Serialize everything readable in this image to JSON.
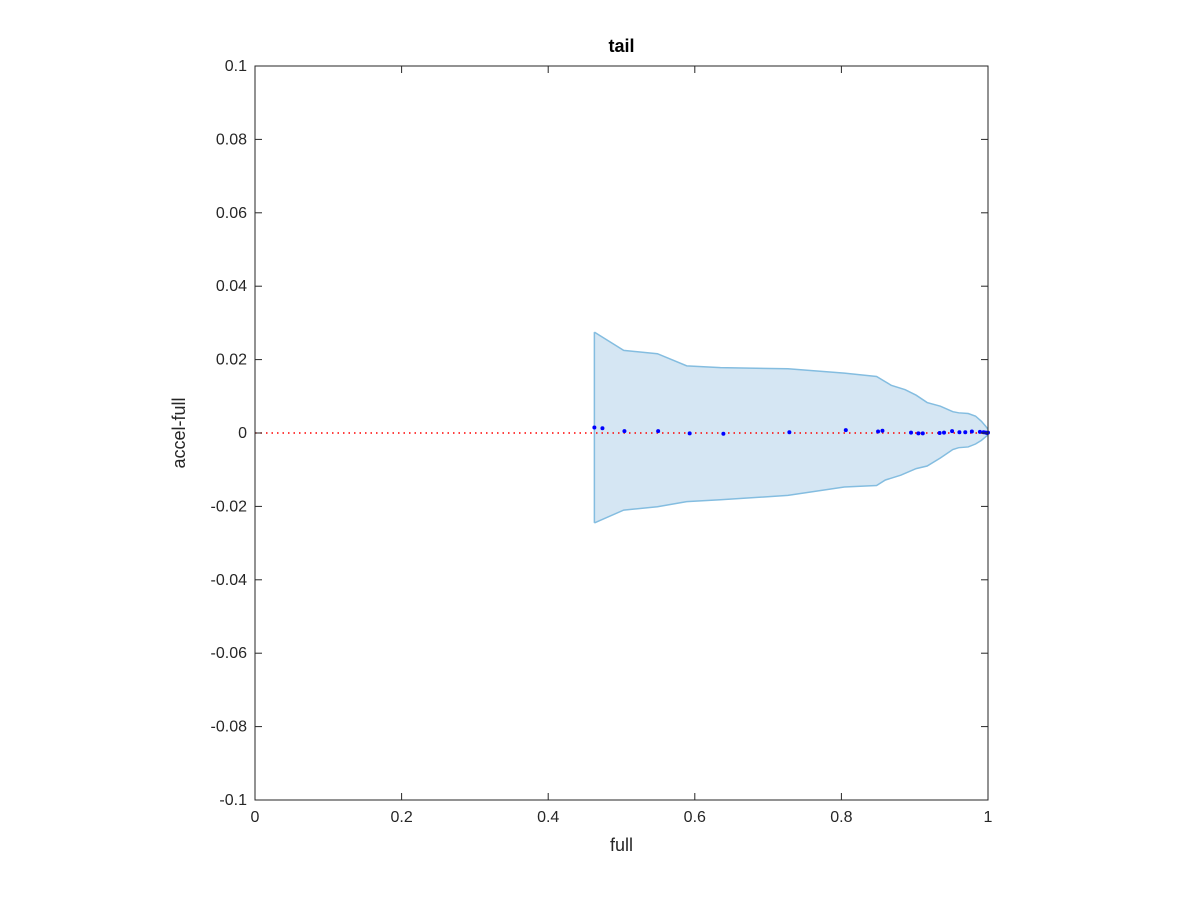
{
  "chart_data": {
    "type": "scatter",
    "title": "tail",
    "xlabel": "full",
    "ylabel": "accel-full",
    "xlim": [
      0,
      1
    ],
    "ylim": [
      -0.1,
      0.1
    ],
    "grid": false,
    "xticks": [
      0,
      0.2,
      0.4,
      0.6,
      0.8,
      1
    ],
    "xtick_labels": [
      "0",
      "0.2",
      "0.4",
      "0.6",
      "0.8",
      "1"
    ],
    "yticks": [
      0.1,
      0.08,
      0.06,
      0.04,
      0.02,
      0,
      -0.02,
      -0.04,
      -0.06,
      -0.08,
      -0.1
    ],
    "ytick_labels": [
      "0.1",
      "0.08",
      "0.06",
      "0.04",
      "0.02",
      "0",
      "-0.02",
      "-0.04",
      "-0.06",
      "-0.08",
      "-0.1"
    ],
    "band": {
      "upper": [
        [
          0.463,
          0.0275
        ],
        [
          0.503,
          0.0225
        ],
        [
          0.549,
          0.0216
        ],
        [
          0.589,
          0.0183
        ],
        [
          0.635,
          0.0178
        ],
        [
          0.727,
          0.0175
        ],
        [
          0.804,
          0.0163
        ],
        [
          0.848,
          0.0154
        ],
        [
          0.868,
          0.013
        ],
        [
          0.887,
          0.0118
        ],
        [
          0.902,
          0.0103
        ],
        [
          0.917,
          0.0083
        ],
        [
          0.935,
          0.0073
        ],
        [
          0.952,
          0.0058
        ],
        [
          0.96,
          0.0055
        ],
        [
          0.973,
          0.0053
        ],
        [
          0.983,
          0.0046
        ],
        [
          0.991,
          0.0032
        ],
        [
          0.997,
          0.0018
        ],
        [
          1.0,
          0.001
        ]
      ],
      "lower": [
        [
          0.463,
          -0.0245
        ],
        [
          0.503,
          -0.021
        ],
        [
          0.549,
          -0.0201
        ],
        [
          0.589,
          -0.0187
        ],
        [
          0.635,
          -0.0182
        ],
        [
          0.727,
          -0.017
        ],
        [
          0.804,
          -0.0147
        ],
        [
          0.848,
          -0.0143
        ],
        [
          0.86,
          -0.0128
        ],
        [
          0.881,
          -0.0115
        ],
        [
          0.902,
          -0.0097
        ],
        [
          0.917,
          -0.009
        ],
        [
          0.935,
          -0.0068
        ],
        [
          0.952,
          -0.0045
        ],
        [
          0.96,
          -0.004
        ],
        [
          0.973,
          -0.0038
        ],
        [
          0.983,
          -0.003
        ],
        [
          0.991,
          -0.002
        ],
        [
          0.997,
          -0.001
        ],
        [
          1.0,
          -0.0005
        ]
      ],
      "fill_color": "#d5e6f3",
      "line_color": "#84bde0"
    },
    "points": [
      {
        "x": 0.463,
        "y": 0.0015
      },
      {
        "x": 0.474,
        "y": 0.0013
      },
      {
        "x": 0.504,
        "y": 0.0005
      },
      {
        "x": 0.55,
        "y": 0.0005
      },
      {
        "x": 0.593,
        "y": -0.0001
      },
      {
        "x": 0.639,
        "y": -0.0002
      },
      {
        "x": 0.729,
        "y": 0.0002
      },
      {
        "x": 0.806,
        "y": 0.0008
      },
      {
        "x": 0.85,
        "y": 0.0004
      },
      {
        "x": 0.856,
        "y": 0.0006
      },
      {
        "x": 0.895,
        "y": 0.0001
      },
      {
        "x": 0.905,
        "y": -0.0001
      },
      {
        "x": 0.911,
        "y": -0.0001
      },
      {
        "x": 0.934,
        "y": 0.0
      },
      {
        "x": 0.94,
        "y": 0.0001
      },
      {
        "x": 0.951,
        "y": 0.0005
      },
      {
        "x": 0.961,
        "y": 0.0002
      },
      {
        "x": 0.969,
        "y": 0.0002
      },
      {
        "x": 0.978,
        "y": 0.0004
      },
      {
        "x": 0.989,
        "y": 0.0003
      },
      {
        "x": 0.994,
        "y": 0.0002
      },
      {
        "x": 0.997,
        "y": 0.0001
      },
      {
        "x": 0.999,
        "y": 0.0
      },
      {
        "x": 1.0,
        "y": 0.0001
      }
    ],
    "point_color": "#0000ff",
    "reference_line": {
      "y": 0,
      "color": "#ff0000",
      "style": "dotted"
    }
  }
}
